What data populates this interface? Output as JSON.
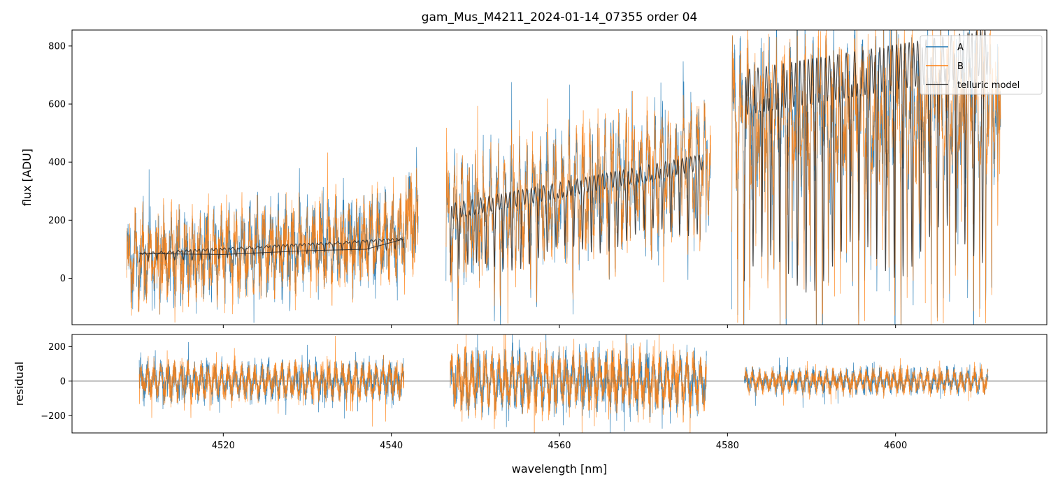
{
  "chart_data": [
    {
      "type": "line",
      "title": "gam_Mus_M4211_2024-01-14_07355  order 04",
      "xlabel": "",
      "ylabel": "flux [ADU]",
      "xlim": [
        4502,
        4618
      ],
      "ylim": [
        -160,
        855
      ],
      "xticks": [
        4520,
        4540,
        4560,
        4580,
        4600
      ],
      "yticks": [
        0,
        200,
        400,
        600,
        800
      ],
      "ytick_labels": [
        "0",
        "200",
        "400",
        "600",
        "800"
      ],
      "legend": {
        "position": "top-right",
        "entries": [
          "A",
          "B",
          "telluric model"
        ]
      },
      "segments": [
        {
          "x0": 4508.5,
          "x1": 4542.0,
          "mean0": 60,
          "mean1": 150,
          "amp": 120,
          "depth": 40,
          "noise": 60
        },
        {
          "x0": 4542.0,
          "x1": 4543.2,
          "mean0": 200,
          "mean1": 200,
          "amp": 120,
          "depth": 40,
          "noise": 70
        },
        {
          "x0": 4546.5,
          "x1": 4578.0,
          "mean0": 200,
          "mean1": 420,
          "amp": 200,
          "depth": 190,
          "noise": 55
        },
        {
          "x0": 4580.5,
          "x1": 4612.5,
          "mean0": 560,
          "mean1": 600,
          "amp": 230,
          "depth": 600,
          "noise": 80
        }
      ],
      "series": [
        {
          "name": "A",
          "color": "#1f77b4"
        },
        {
          "name": "B",
          "color": "#ff7f0e"
        },
        {
          "name": "telluric model",
          "color": "#2b2b2b"
        }
      ],
      "telluric_model": {
        "segments": [
          {
            "x0": 4510.0,
            "x1": 4541.5,
            "baseline": [
              85,
              135
            ],
            "dip_depth": 30
          },
          {
            "x0": 4547.0,
            "x1": 4577.0,
            "baseline": [
              230,
              400
            ],
            "dip_depth": 220
          },
          {
            "x0": 4582.0,
            "x1": 4611.0,
            "baseline": [
              640,
              780
            ],
            "dip_depth": 650
          }
        ],
        "trend_line": [
          [
            4510,
            85
          ],
          [
            4520,
            82
          ],
          [
            4530,
            95
          ],
          [
            4537,
            100
          ],
          [
            4541.5,
            135
          ]
        ]
      }
    },
    {
      "type": "line",
      "title": "",
      "xlabel": "wavelength [nm]",
      "ylabel": "residual",
      "xlim": [
        4502,
        4618
      ],
      "ylim": [
        -300,
        270
      ],
      "xticks": [
        4520,
        4540,
        4560,
        4580,
        4600
      ],
      "xtick_labels": [
        "4520",
        "4540",
        "4560",
        "4580",
        "4600"
      ],
      "yticks": [
        -200,
        0,
        200
      ],
      "ytick_labels": [
        "−200",
        "0",
        "200"
      ],
      "zero_line": 0,
      "segments": [
        {
          "x0": 4510.0,
          "x1": 4541.5,
          "amp": 110
        },
        {
          "x0": 4547.0,
          "x1": 4577.5,
          "amp": 170
        },
        {
          "x0": 4582.0,
          "x1": 4611.0,
          "amp": 70
        }
      ],
      "series": [
        {
          "name": "A",
          "color": "#1f77b4"
        },
        {
          "name": "B",
          "color": "#ff7f0e"
        }
      ]
    }
  ]
}
